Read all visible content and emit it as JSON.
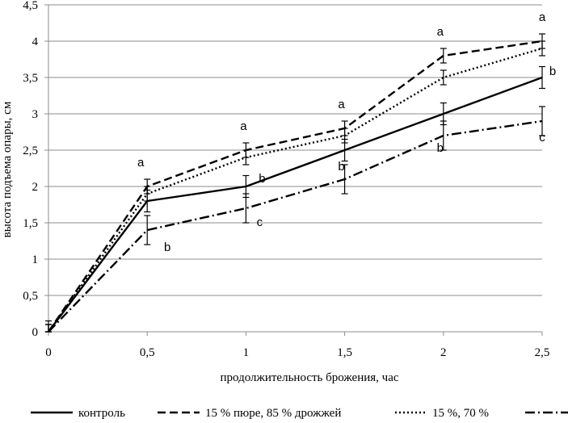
{
  "chart_data": {
    "type": "line",
    "title": "",
    "xlabel": "продолжительность брожения, час",
    "ylabel": "высота подъема опары, см",
    "x": [
      0,
      0.5,
      1,
      1.5,
      2,
      2.5
    ],
    "x_tick_labels": [
      "0",
      "0,5",
      "1",
      "1,5",
      "2",
      "2,5"
    ],
    "y_tick_labels": [
      "0",
      "0,5",
      "1",
      "1,5",
      "2",
      "2,5",
      "3",
      "3,5",
      "4",
      "4,5"
    ],
    "xlim": [
      0,
      2.5
    ],
    "ylim": [
      0,
      4.5
    ],
    "grid": "horizontal",
    "legend_position": "bottom",
    "series": [
      {
        "name": "контроль",
        "style": "solid",
        "values": [
          0,
          1.8,
          2.0,
          2.5,
          3.0,
          3.5
        ],
        "errors": [
          0.1,
          0.15,
          0.15,
          0.15,
          0.15,
          0.15
        ]
      },
      {
        "name": "15 % пюре, 85 % дрожжей",
        "style": "dashed",
        "values": [
          0,
          2.0,
          2.5,
          2.8,
          3.8,
          4.0
        ],
        "errors": [
          0.15,
          0.1,
          0.1,
          0.1,
          0.1,
          0.1
        ]
      },
      {
        "name": "15 %, 70 %",
        "style": "dotted",
        "values": [
          0,
          1.9,
          2.4,
          2.7,
          3.5,
          3.9
        ],
        "errors": [
          0.1,
          0.1,
          0.1,
          0.1,
          0.1,
          0.1
        ]
      },
      {
        "name": "",
        "style": "dashdot",
        "values": [
          0,
          1.4,
          1.7,
          2.1,
          2.7,
          2.9
        ],
        "errors": [
          0.1,
          0.2,
          0.2,
          0.2,
          0.2,
          0.2
        ]
      }
    ],
    "annotations": [
      {
        "x": 0.5,
        "text": "a"
      },
      {
        "x": 0.5,
        "text": "b"
      },
      {
        "x": 1,
        "text": "a"
      },
      {
        "x": 1,
        "text": "b"
      },
      {
        "x": 1,
        "text": "c"
      },
      {
        "x": 1.5,
        "text": "a"
      },
      {
        "x": 1.5,
        "text": "b"
      },
      {
        "x": 2,
        "text": "a"
      },
      {
        "x": 2,
        "text": "b"
      },
      {
        "x": 2.5,
        "text": "a"
      },
      {
        "x": 2.5,
        "text": "b"
      },
      {
        "x": 2.5,
        "text": "c"
      }
    ]
  }
}
